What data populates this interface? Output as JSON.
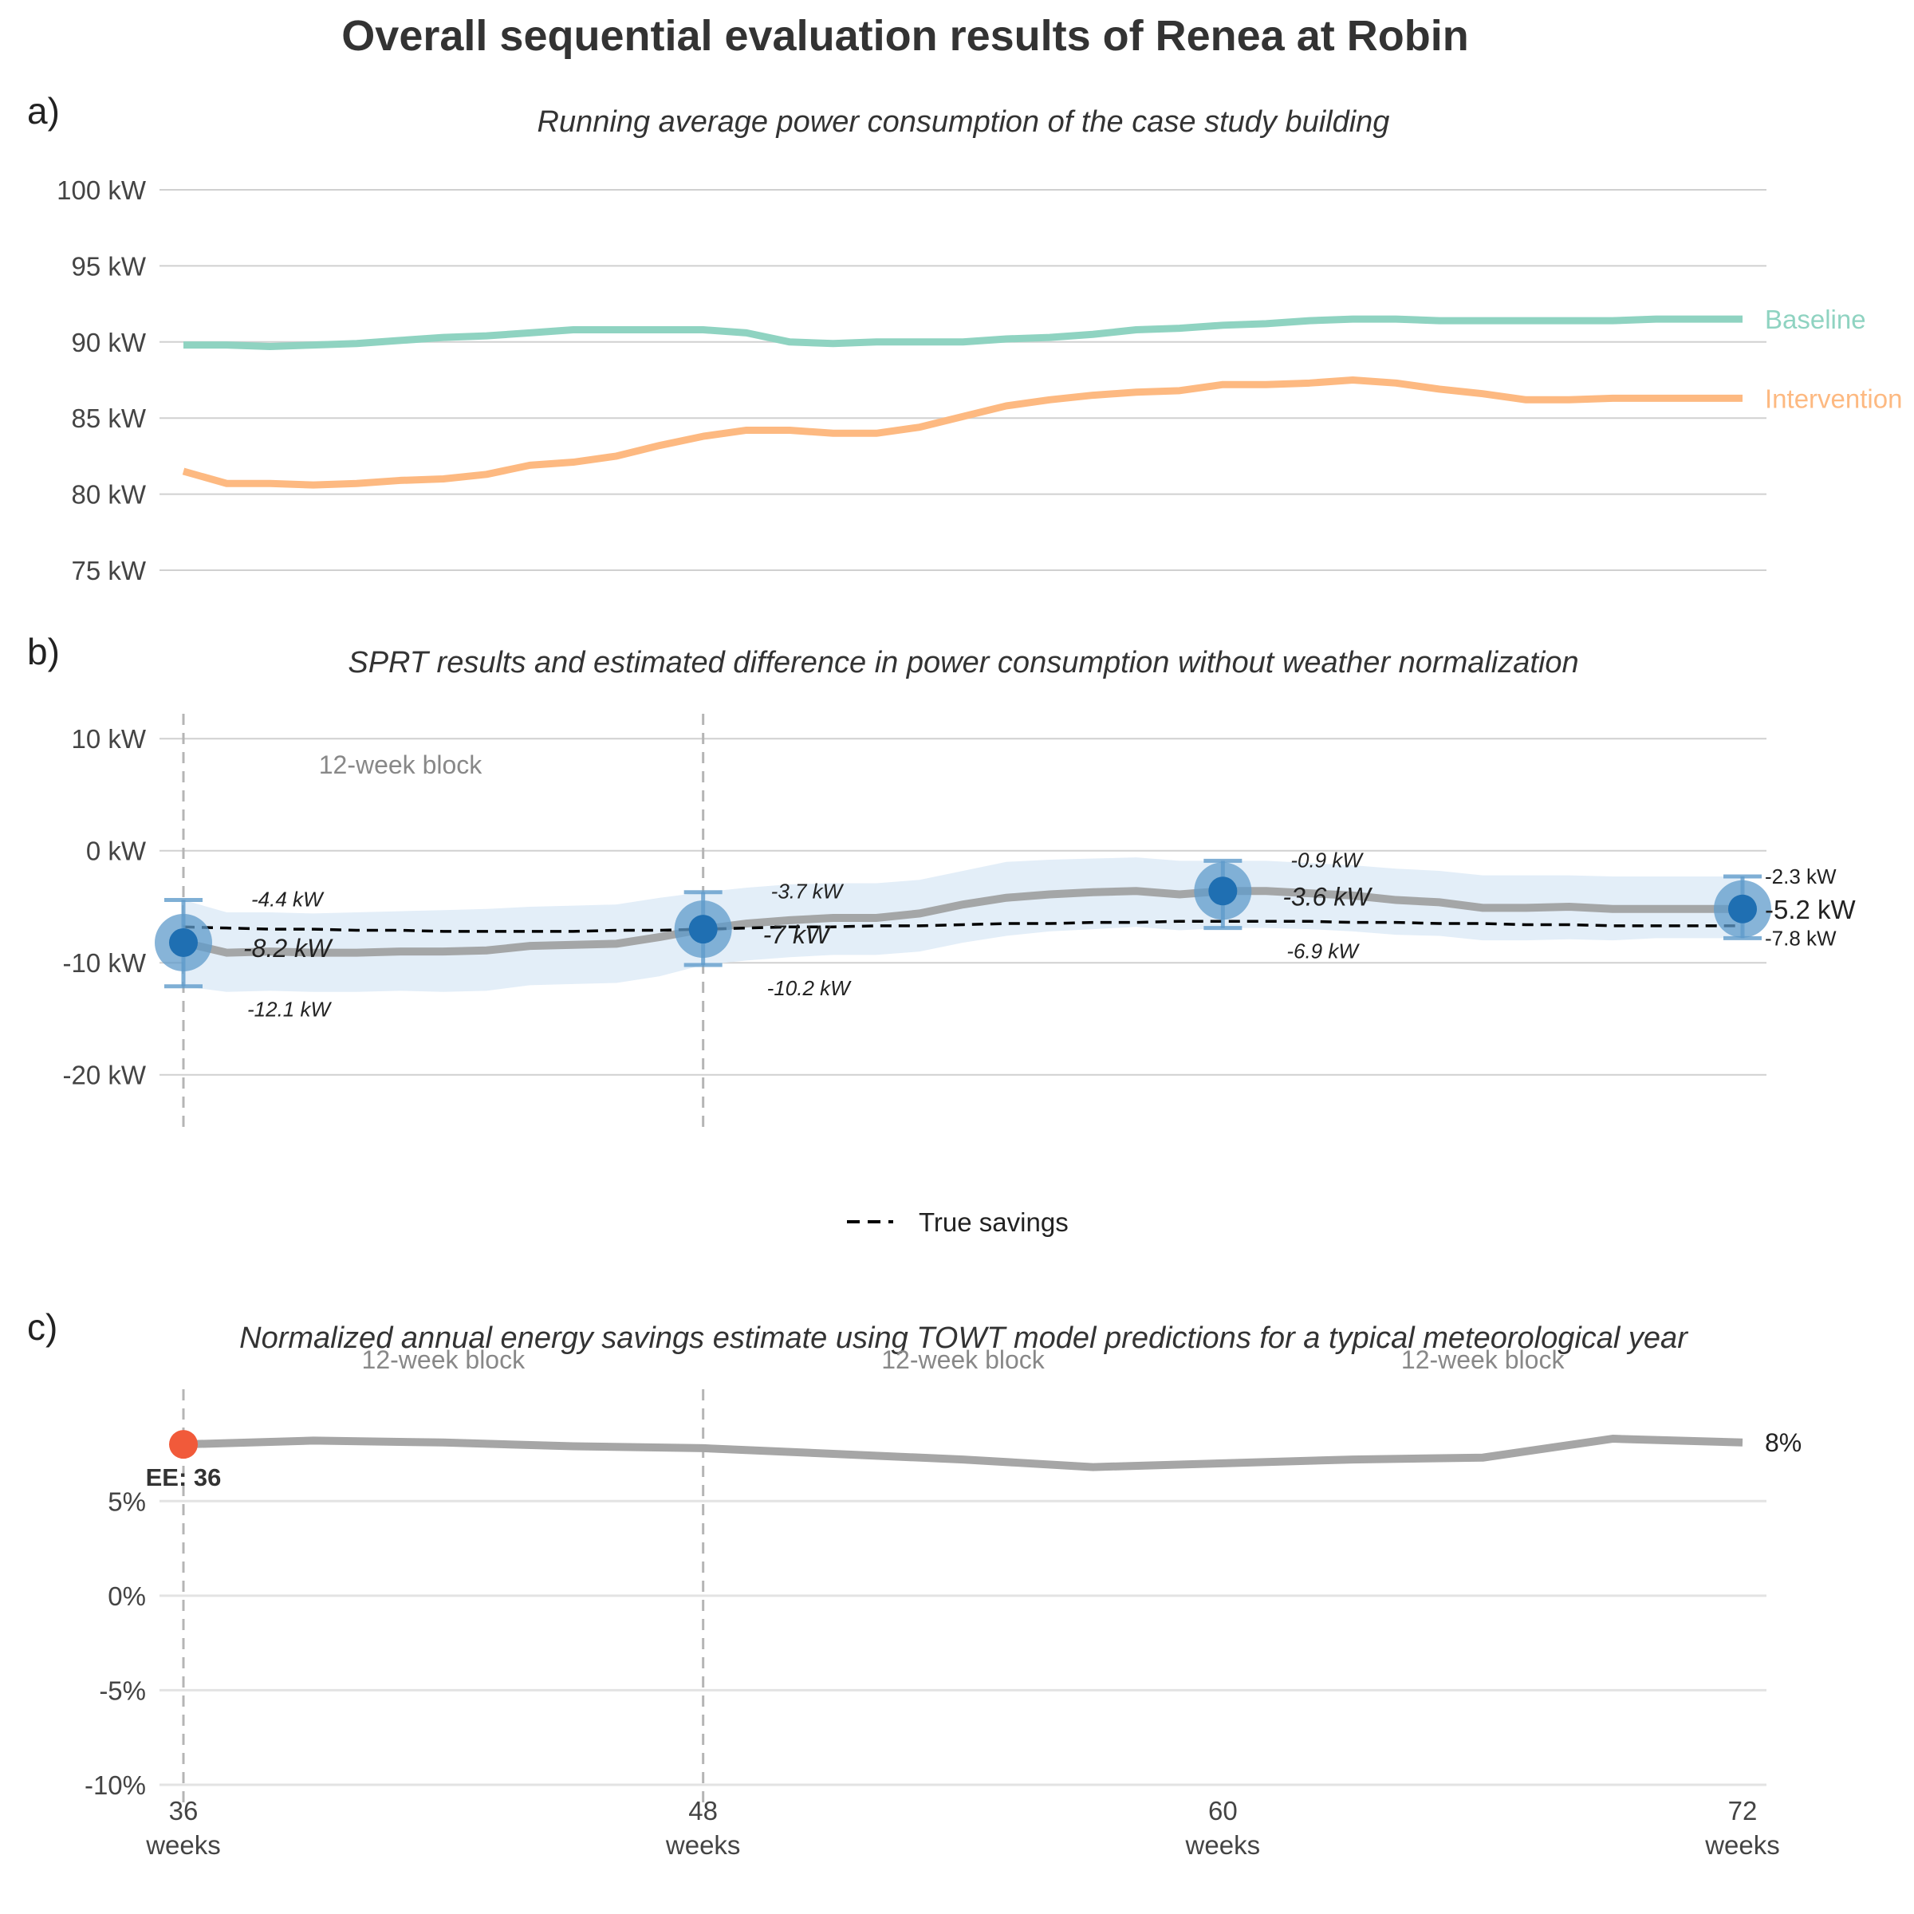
{
  "title": "Overall sequential evaluation results of Renea at Robin",
  "chart_data": [
    {
      "panel": "a)",
      "type": "line",
      "title": "Running average power consumption of the case study building",
      "x_unit": "weeks",
      "xlim": [
        36,
        72
      ],
      "ylim": [
        75,
        100
      ],
      "yticks": [
        75,
        80,
        85,
        90,
        95,
        100
      ],
      "ytick_labels": [
        "75 kW",
        "80 kW",
        "85 kW",
        "90 kW",
        "95 kW",
        "100 kW"
      ],
      "grid": true,
      "legend": "direct labels at right end",
      "x": [
        36,
        37,
        38,
        39,
        40,
        41,
        42,
        43,
        44,
        45,
        46,
        47,
        48,
        49,
        50,
        51,
        52,
        53,
        54,
        55,
        56,
        57,
        58,
        59,
        60,
        61,
        62,
        63,
        64,
        65,
        66,
        67,
        68,
        69,
        70,
        71,
        72
      ],
      "series": [
        {
          "name": "Baseline",
          "color": "#8fd3c1",
          "values": [
            89.8,
            89.8,
            89.7,
            89.8,
            89.9,
            90.1,
            90.3,
            90.4,
            90.6,
            90.8,
            90.8,
            90.8,
            90.8,
            90.6,
            90.0,
            89.9,
            90.0,
            90.0,
            90.0,
            90.2,
            90.3,
            90.5,
            90.8,
            90.9,
            91.1,
            91.2,
            91.4,
            91.5,
            91.5,
            91.4,
            91.4,
            91.4,
            91.4,
            91.4,
            91.5,
            91.5,
            91.5
          ]
        },
        {
          "name": "Intervention",
          "color": "#fdb981",
          "values": [
            81.5,
            80.7,
            80.7,
            80.6,
            80.7,
            80.9,
            81.0,
            81.3,
            81.9,
            82.1,
            82.5,
            83.2,
            83.8,
            84.2,
            84.2,
            84.0,
            84.0,
            84.4,
            85.1,
            85.8,
            86.2,
            86.5,
            86.7,
            86.8,
            87.2,
            87.2,
            87.3,
            87.5,
            87.3,
            86.9,
            86.6,
            86.2,
            86.2,
            86.3,
            86.3,
            86.3,
            86.3
          ]
        }
      ]
    },
    {
      "panel": "b)",
      "type": "line",
      "title": "SPRT results and estimated difference in power consumption without weather normalization",
      "x_unit": "weeks",
      "xlim": [
        36,
        72
      ],
      "ylim": [
        -25,
        14
      ],
      "yticks": [
        -20,
        -10,
        0,
        10
      ],
      "ytick_labels": [
        "-20 kW",
        "-10 kW",
        "0 kW",
        "10 kW"
      ],
      "grid": true,
      "vlines": [
        36,
        48
      ],
      "block_label": "12-week block",
      "legend_position": "bottom-center",
      "legend": [
        "True savings"
      ],
      "x": [
        36,
        37,
        38,
        39,
        40,
        41,
        42,
        43,
        44,
        45,
        46,
        47,
        48,
        49,
        50,
        51,
        52,
        53,
        54,
        55,
        56,
        57,
        58,
        59,
        60,
        61,
        62,
        63,
        64,
        65,
        66,
        67,
        68,
        69,
        70,
        71,
        72
      ],
      "estimate": [
        -8.2,
        -9.1,
        -9.0,
        -9.1,
        -9.1,
        -9.0,
        -9.0,
        -8.9,
        -8.5,
        -8.4,
        -8.3,
        -7.7,
        -7.0,
        -6.5,
        -6.2,
        -6.0,
        -6.0,
        -5.6,
        -4.8,
        -4.2,
        -3.9,
        -3.7,
        -3.6,
        -3.9,
        -3.6,
        -3.6,
        -3.8,
        -4.0,
        -4.4,
        -4.6,
        -5.1,
        -5.1,
        -5.0,
        -5.2,
        -5.2,
        -5.2,
        -5.2
      ],
      "ci_upper": [
        -4.4,
        -5.5,
        -5.5,
        -5.6,
        -5.5,
        -5.4,
        -5.3,
        -5.2,
        -5.0,
        -4.9,
        -4.8,
        -4.2,
        -3.7,
        -3.3,
        -3.0,
        -2.9,
        -2.9,
        -2.6,
        -1.8,
        -1.0,
        -0.8,
        -0.7,
        -0.6,
        -0.9,
        -0.9,
        -0.9,
        -1.1,
        -1.3,
        -1.6,
        -1.8,
        -2.2,
        -2.2,
        -2.2,
        -2.3,
        -2.3,
        -2.3,
        -2.3
      ],
      "ci_lower": [
        -12.1,
        -12.6,
        -12.5,
        -12.6,
        -12.6,
        -12.5,
        -12.6,
        -12.5,
        -12.0,
        -11.9,
        -11.8,
        -11.2,
        -10.2,
        -9.8,
        -9.5,
        -9.3,
        -9.3,
        -9.0,
        -8.2,
        -7.6,
        -7.2,
        -7.0,
        -6.8,
        -7.1,
        -6.9,
        -6.9,
        -7.0,
        -7.2,
        -7.5,
        -7.6,
        -8.0,
        -8.0,
        -7.9,
        -8.0,
        -7.8,
        -7.8,
        -7.8
      ],
      "true_savings": [
        -6.8,
        -6.9,
        -7.0,
        -7.0,
        -7.1,
        -7.1,
        -7.2,
        -7.2,
        -7.2,
        -7.2,
        -7.1,
        -7.1,
        -7.0,
        -6.9,
        -6.8,
        -6.8,
        -6.7,
        -6.7,
        -6.6,
        -6.5,
        -6.5,
        -6.4,
        -6.4,
        -6.3,
        -6.3,
        -6.3,
        -6.3,
        -6.4,
        -6.4,
        -6.5,
        -6.5,
        -6.6,
        -6.6,
        -6.7,
        -6.7,
        -6.7,
        -6.7
      ],
      "sprt_points": [
        {
          "week": 36,
          "estimate": -8.2,
          "upper": -4.4,
          "lower": -12.1,
          "label": "-8.2 kW",
          "upper_label": "-4.4 kW",
          "lower_label": "-12.1 kW"
        },
        {
          "week": 48,
          "estimate": -7.0,
          "upper": -3.7,
          "lower": -10.2,
          "label": "-7 kW",
          "upper_label": "-3.7 kW",
          "lower_label": "-10.2 kW"
        },
        {
          "week": 60,
          "estimate": -3.6,
          "upper": -0.9,
          "lower": -6.9,
          "label": "-3.6 kW",
          "upper_label": "-0.9 kW",
          "lower_label": "-6.9 kW"
        },
        {
          "week": 72,
          "estimate": -5.2,
          "upper": -2.3,
          "lower": -7.8,
          "label": "-5.2 kW",
          "upper_label": "-2.3 kW",
          "lower_label": "-7.8 kW"
        }
      ],
      "colors": {
        "point": "#1f6fb2",
        "halo": "#5f9bcb",
        "ribbon": "#e3eef8",
        "estimate_line": "#999999",
        "true_savings": "#000000"
      }
    },
    {
      "panel": "c)",
      "type": "line",
      "title": "Normalized annual energy savings estimate using TOWT model predictions for a typical meteorological year",
      "x_unit": "weeks",
      "xlim": [
        36,
        72
      ],
      "ylim": [
        -10,
        11
      ],
      "yticks": [
        -10,
        -5,
        0,
        5
      ],
      "ytick_labels": [
        "-10%",
        "-5%",
        "0%",
        "5%"
      ],
      "xticks": [
        36,
        48,
        60,
        72
      ],
      "xtick_labels": [
        "36",
        "48",
        "60",
        "72"
      ],
      "xtick_unit_label": "weeks",
      "grid": true,
      "vlines": [
        36,
        48
      ],
      "block_labels": [
        "12-week block",
        "12-week block",
        "12-week block"
      ],
      "x": [
        36,
        39,
        42,
        45,
        48,
        51,
        54,
        57,
        60,
        63,
        66,
        69,
        72
      ],
      "values": [
        8.0,
        8.2,
        8.1,
        7.9,
        7.8,
        7.5,
        7.2,
        6.8,
        7.0,
        7.2,
        7.3,
        8.3,
        8.1
      ],
      "end_label": "8%",
      "early_end": {
        "week": 36,
        "value": 8.0,
        "label": "EE: 36",
        "color": "#f15a3a"
      },
      "line_color": "#a6a6a6"
    }
  ]
}
